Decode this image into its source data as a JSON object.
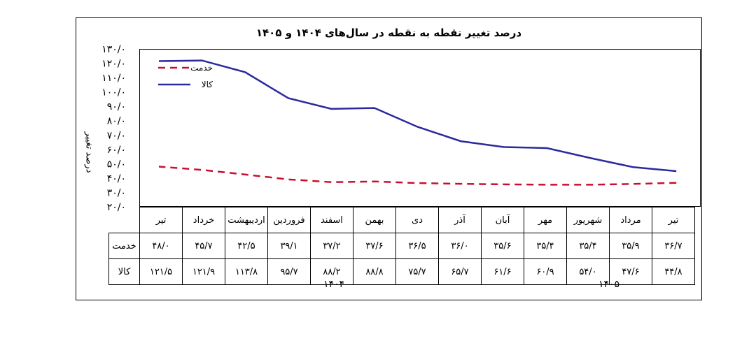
{
  "chart_data": {
    "type": "line",
    "title": "درصد تغییر نقطه به نقطه در سال‌های ۱۴۰۴ و ۱۴۰۵",
    "ylabel": "درصد تغییر",
    "ylim": [
      20,
      130
    ],
    "y_ticks": [
      "۲۰/۰",
      "۳۰/۰",
      "۴۰/۰",
      "۵۰/۰",
      "۶۰/۰",
      "۷۰/۰",
      "۸۰/۰",
      "۹۰/۰",
      "۱۰۰/۰",
      "۱۱۰/۰",
      "۱۲۰/۰",
      "۱۳۰/۰"
    ],
    "categories": [
      "تیر",
      "مرداد",
      "شهریور",
      "مهر",
      "آبان",
      "آذر",
      "دی",
      "بهمن",
      "اسفند",
      "فروردین",
      "اردیبهشت",
      "خرداد",
      "تیر"
    ],
    "year_groups": [
      "۱۴۰۴",
      "۱۴۰۵"
    ],
    "series": [
      {
        "name": "خدمت",
        "color": "#c8102e",
        "style": "dashed",
        "values": [
          36.7,
          35.9,
          35.4,
          35.4,
          35.6,
          36.0,
          36.5,
          37.6,
          37.2,
          39.1,
          42.5,
          45.7,
          48.0
        ],
        "labels": [
          "۳۶/۷",
          "۳۵/۹",
          "۳۵/۴",
          "۳۵/۴",
          "۳۵/۶",
          "۳۶/۰",
          "۳۶/۵",
          "۳۷/۶",
          "۳۷/۲",
          "۳۹/۱",
          "۴۲/۵",
          "۴۵/۷",
          "۴۸/۰"
        ]
      },
      {
        "name": "کالا",
        "color": "#2a2a9e",
        "style": "solid",
        "values": [
          44.8,
          47.6,
          54.0,
          60.9,
          61.6,
          65.7,
          75.7,
          88.8,
          88.2,
          95.7,
          113.8,
          121.9,
          121.5
        ],
        "labels": [
          "۴۴/۸",
          "۴۷/۶",
          "۵۴/۰",
          "۶۰/۹",
          "۶۱/۶",
          "۶۵/۷",
          "۷۵/۷",
          "۸۸/۸",
          "۸۸/۲",
          "۹۵/۷",
          "۱۱۳/۸",
          "۱۲۱/۹",
          "۱۲۱/۵"
        ]
      }
    ]
  }
}
